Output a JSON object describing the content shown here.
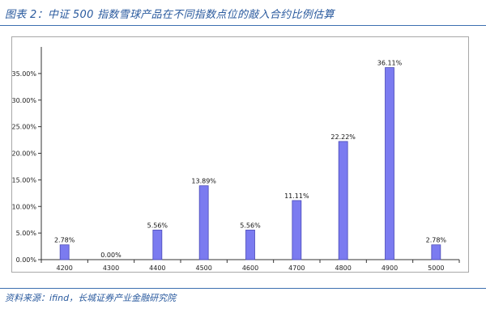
{
  "figure": {
    "title": "图表 2：中证 500 指数雪球产品在不同指数点位的敲入合约比例估算",
    "source": "资料来源：ifind，长城证券产业金融研究院"
  },
  "colors": {
    "bar_fill": "#7b7bf0",
    "bar_stroke": "#4a4ab8",
    "accent": "#2a5a9e"
  },
  "chart_data": {
    "type": "bar",
    "categories": [
      "4200",
      "4300",
      "4400",
      "4500",
      "4600",
      "4700",
      "4800",
      "4900",
      "5000"
    ],
    "values": [
      2.78,
      0.0,
      5.56,
      13.89,
      5.56,
      11.11,
      22.22,
      36.11,
      2.78
    ],
    "value_labels": [
      "2.78%",
      "0.00%",
      "5.56%",
      "13.89%",
      "5.56%",
      "11.11%",
      "22.22%",
      "36.11%",
      "2.78%"
    ],
    "y_ticks": [
      0,
      5,
      10,
      15,
      20,
      25,
      30,
      35
    ],
    "y_tick_labels": [
      "0.00%",
      "5.00%",
      "10.00%",
      "15.00%",
      "20.00%",
      "25.00%",
      "30.00%",
      "35.00%"
    ],
    "ylim": [
      0,
      40
    ],
    "grid": false,
    "legend": "none",
    "title": "",
    "xlabel": "",
    "ylabel": ""
  }
}
